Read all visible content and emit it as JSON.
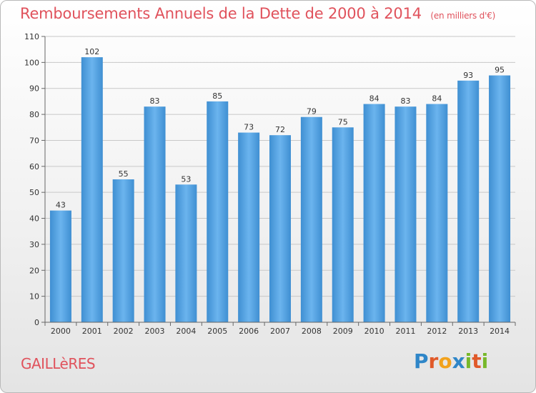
{
  "chart_data": {
    "type": "bar",
    "title": "Remboursements Annuels de la Dette de 2000 à 2014",
    "unit_note": "(en milliers d'€)",
    "categories": [
      "2000",
      "2001",
      "2002",
      "2003",
      "2004",
      "2005",
      "2006",
      "2007",
      "2008",
      "2009",
      "2010",
      "2011",
      "2012",
      "2013",
      "2014"
    ],
    "values": [
      43,
      102,
      55,
      83,
      53,
      85,
      73,
      72,
      79,
      75,
      84,
      83,
      84,
      93,
      95
    ],
    "ylim": [
      0,
      110
    ],
    "yticks": [
      0,
      10,
      20,
      30,
      40,
      50,
      60,
      70,
      80,
      90,
      100,
      110
    ],
    "xlabel": "",
    "ylabel": "",
    "grid": "horizontal",
    "bar_color": "#4f9fdd",
    "bar_color_light": "#6fb6ec"
  },
  "footer": {
    "commune": "GAILLèRES",
    "logo_text": "Proxiti"
  },
  "colors": {
    "title": "#e0525c",
    "grid": "#c8c8c8",
    "axis": "#666666"
  }
}
